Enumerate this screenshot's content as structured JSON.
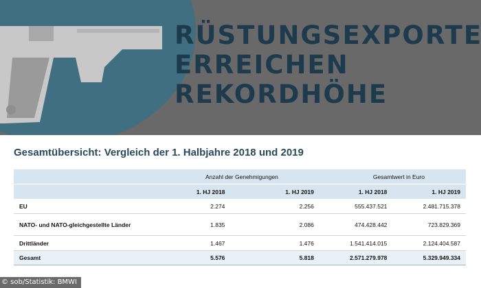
{
  "banner": {
    "headline_line1": "RÜSTUNGSEXPORTE",
    "headline_line2": "ERREICHEN",
    "headline_line3": "REKORDHÖHE",
    "illustration_icon": "pistol-icon",
    "colors": {
      "background": "#696969",
      "circle": "#3f6f80",
      "headline": "#1e3a4d"
    }
  },
  "table": {
    "title": "Gesamtübersicht: Vergleich der 1. Halbjahre 2018 und 2019",
    "group_headers": [
      "Anzahl der Genehmigungen",
      "Gesamtwert in Euro"
    ],
    "column_headers": [
      "1. HJ 2018",
      "1. HJ 2019",
      "1. HJ 2018",
      "1. HJ 2019"
    ],
    "rows": [
      {
        "label": "EU",
        "values": [
          "2.274",
          "2.256",
          "555.437.521",
          "2.481.715.378"
        ]
      },
      {
        "label": "NATO- und NATO-gleichgestellte Länder",
        "values": [
          "1.835",
          "2.086",
          "474.428.442",
          "723.829.369"
        ]
      },
      {
        "label": "Drittländer",
        "values": [
          "1.467",
          "1.476",
          "1.541.414.015",
          "2.124.404.587"
        ]
      }
    ],
    "total": {
      "label": "Gesamt",
      "values": [
        "5.576",
        "5.818",
        "2.571.279.978",
        "5.329.949.334"
      ]
    },
    "colors": {
      "header_fill": "#d6e5f0",
      "title": "#264a5e"
    }
  },
  "credit": "© sob/Statistik: BMWI"
}
